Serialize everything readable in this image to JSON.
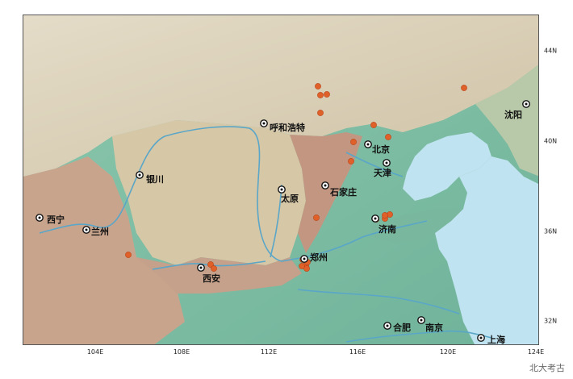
{
  "colors": {
    "sea": "#bfe3f0",
    "lowland": "#7cbfa5",
    "plateau": "#d8cfb8",
    "mountain": "#c79a86",
    "river": "#5aa6c8",
    "site": "#e0602a"
  },
  "cities": [
    {
      "name": "沈阳",
      "icon": "city-marker-icon"
    },
    {
      "name": "呼和浩特",
      "icon": "city-marker-icon"
    },
    {
      "name": "北京",
      "icon": "city-marker-icon"
    },
    {
      "name": "天津",
      "icon": "city-marker-icon"
    },
    {
      "name": "银川",
      "icon": "city-marker-icon"
    },
    {
      "name": "石家庄",
      "icon": "city-marker-icon"
    },
    {
      "name": "太原",
      "icon": "city-marker-icon"
    },
    {
      "name": "西宁",
      "icon": "city-marker-icon"
    },
    {
      "name": "兰州",
      "icon": "city-marker-icon"
    },
    {
      "name": "济南",
      "icon": "city-marker-icon"
    },
    {
      "name": "郑州",
      "icon": "city-marker-icon"
    },
    {
      "name": "西安",
      "icon": "city-marker-icon"
    },
    {
      "name": "合肥",
      "icon": "city-marker-icon"
    },
    {
      "name": "南京",
      "icon": "city-marker-icon"
    },
    {
      "name": "上海",
      "icon": "city-marker-icon"
    }
  ],
  "site_icon": "archaeological-site-dot-icon",
  "site_count": 22,
  "longitude_ticks": [
    "104E",
    "108E",
    "112E",
    "116E",
    "120E",
    "124E"
  ],
  "latitude_ticks": [
    "44N",
    "40N",
    "36N",
    "32N"
  ],
  "watermark": "北大考古"
}
